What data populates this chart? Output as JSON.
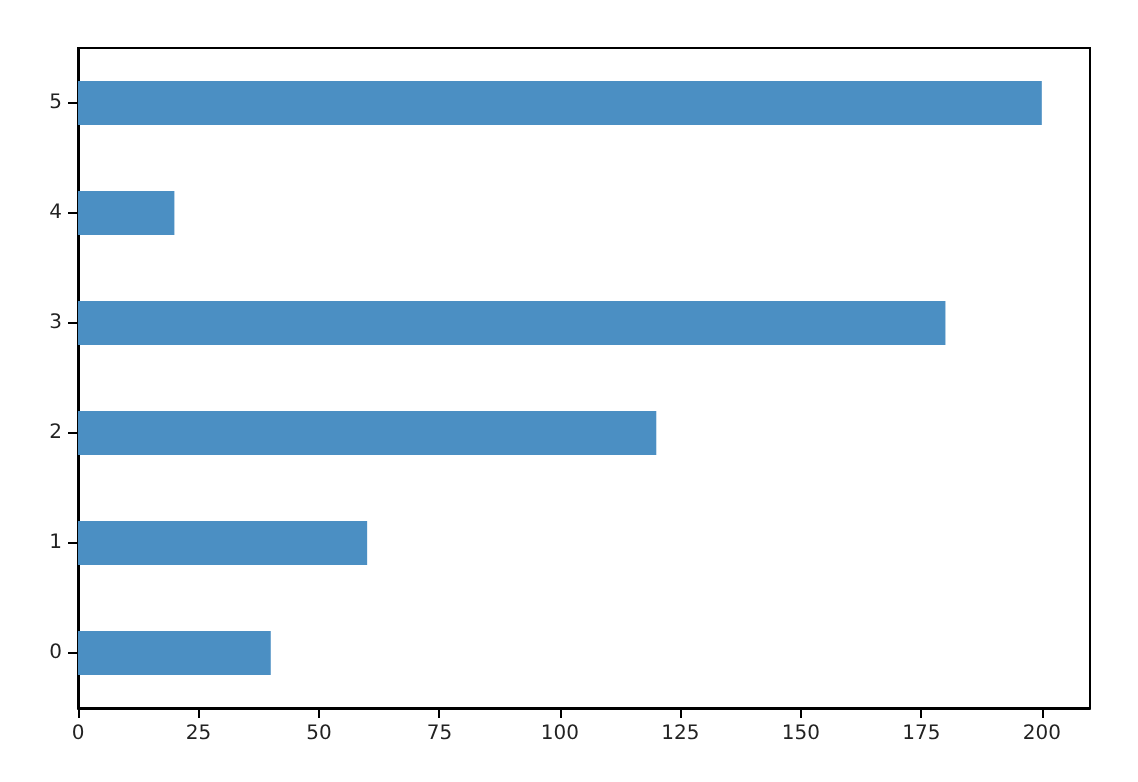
{
  "chart_data": {
    "type": "bar",
    "orientation": "horizontal",
    "categories": [
      "5",
      "4",
      "3",
      "2",
      "1",
      "0"
    ],
    "values": [
      200,
      20,
      180,
      120,
      60,
      40
    ],
    "color": "#4b8fc3",
    "xlim": [
      0,
      210
    ],
    "xticks": [
      0,
      25,
      50,
      75,
      100,
      125,
      150,
      175,
      200
    ]
  }
}
